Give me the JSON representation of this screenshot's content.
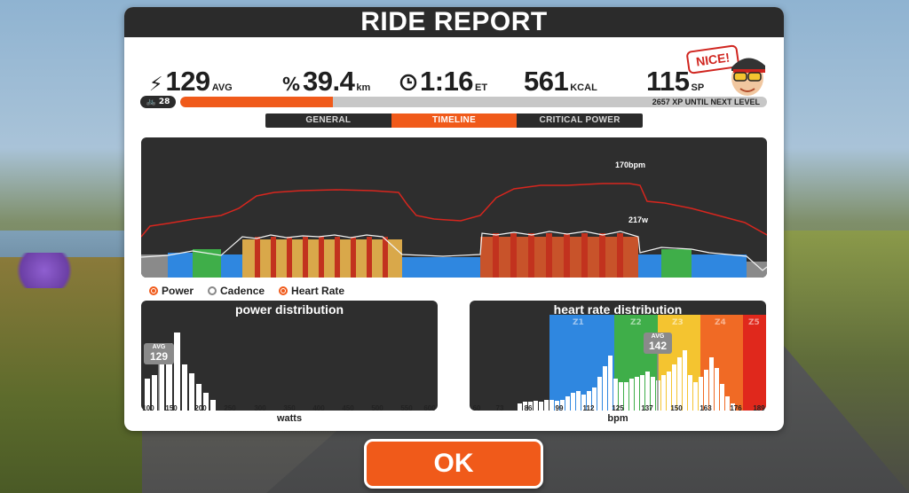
{
  "header": {
    "title": "RIDE REPORT"
  },
  "stats": {
    "power": {
      "value": "129",
      "unit": "AVG",
      "icon": "lightning-icon"
    },
    "distance": {
      "value": "39.4",
      "unit": "km",
      "icon": "distance-icon"
    },
    "time": {
      "value": "1:16",
      "unit": "ET",
      "icon": "clock-icon"
    },
    "calories": {
      "value": "561",
      "unit": "KCAL"
    },
    "sport_points": {
      "value": "115",
      "unit": "SP"
    }
  },
  "badge": {
    "text": "NICE!"
  },
  "level": {
    "number": "28",
    "xp_text": "2657 XP UNTIL NEXT LEVEL",
    "progress": 0.26
  },
  "tabs": [
    {
      "label": "GENERAL",
      "active": false
    },
    {
      "label": "TIMELINE",
      "active": true
    },
    {
      "label": "CRITICAL POWER",
      "active": false
    }
  ],
  "timeline": {
    "hr_peak_label": "170bpm",
    "power_peak_label": "217w",
    "legend": [
      {
        "label": "Power"
      },
      {
        "label": "Cadence"
      },
      {
        "label": "Heart Rate"
      }
    ]
  },
  "power_distribution": {
    "title": "power distribution",
    "avg_label": "AVG",
    "avg_value": "129",
    "x_ticks": [
      "100",
      "150",
      "200",
      "250",
      "300",
      "350",
      "400",
      "450",
      "500",
      "550",
      "600"
    ],
    "x_title": "watts"
  },
  "hr_distribution": {
    "title": "heart rate distribution",
    "avg_label": "AVG",
    "avg_value": "142",
    "zones": [
      "Z1",
      "Z2",
      "Z3",
      "Z4",
      "Z5"
    ],
    "zone_colors": [
      "#2f87e0",
      "#3fae49",
      "#f4c430",
      "#f06a25",
      "#e0281c"
    ],
    "x_ticks": [
      "60",
      "73",
      "86",
      "99",
      "112",
      "125",
      "137",
      "150",
      "163",
      "176",
      "189"
    ],
    "x_title": "bpm"
  },
  "ok_button": {
    "label": "OK"
  },
  "colors": {
    "accent": "#f05a1a",
    "dark": "#2b2b2b",
    "hr_line": "#d7261e"
  }
}
